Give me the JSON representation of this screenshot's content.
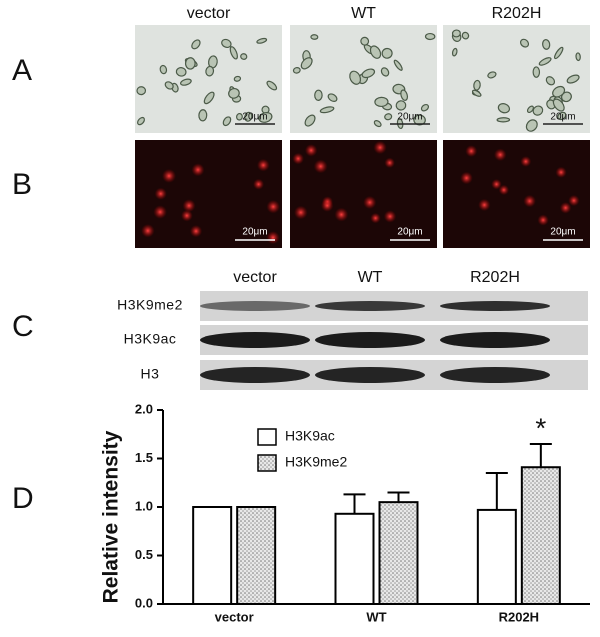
{
  "panel_labels": [
    "A",
    "B",
    "C",
    "D"
  ],
  "images": {
    "columns": [
      "vector",
      "WT",
      "R202H"
    ],
    "scale_bar": "20μm"
  },
  "blot": {
    "columns": [
      "vector",
      "WT",
      "R202H"
    ],
    "rows": [
      "H3K9me2",
      "H3K9ac",
      "H3"
    ]
  },
  "chart_data": {
    "type": "bar",
    "ylabel": "Relative intensity",
    "categories": [
      "vector",
      "WT",
      "R202H"
    ],
    "series": [
      {
        "name": "H3K9ac",
        "color": "#ffffff",
        "values": [
          1.0,
          0.93,
          0.97
        ],
        "errors": [
          null,
          0.2,
          0.38
        ]
      },
      {
        "name": "H3K9me2",
        "color": "dotted",
        "values": [
          1.0,
          1.05,
          1.41
        ],
        "errors": [
          null,
          0.1,
          0.24
        ]
      }
    ],
    "annotation": "*",
    "ylim": [
      0,
      2
    ],
    "yticks": [
      {
        "value": 0,
        "label": "0.0"
      },
      {
        "value": 0.5,
        "label": "0.5"
      },
      {
        "value": 1,
        "label": "1.0"
      },
      {
        "value": 1.5,
        "label": "1.5"
      },
      {
        "value": 2,
        "label": "2.0"
      }
    ]
  }
}
